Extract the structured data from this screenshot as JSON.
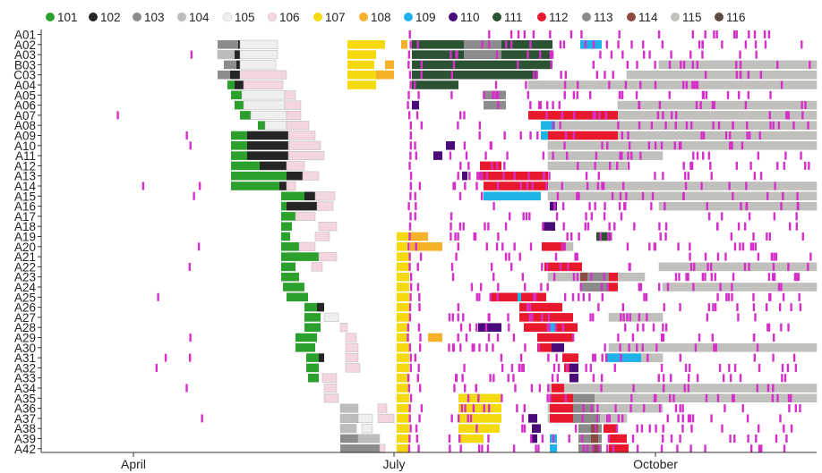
{
  "chart_data": {
    "type": "gantt",
    "legend": {
      "position": "top",
      "items": [
        {
          "label": "101",
          "color": "#2ca02c"
        },
        {
          "label": "102",
          "color": "#252525"
        },
        {
          "label": "103",
          "color": "#8c8c8c"
        },
        {
          "label": "104",
          "color": "#bdbdbd"
        },
        {
          "label": "105",
          "color": "#efefef"
        },
        {
          "label": "106",
          "color": "#f4d6df"
        },
        {
          "label": "107",
          "color": "#f5d90f"
        },
        {
          "label": "108",
          "color": "#f5b228"
        },
        {
          "label": "109",
          "color": "#1fb2e8"
        },
        {
          "label": "110",
          "color": "#4b0a7a"
        },
        {
          "label": "111",
          "color": "#2b5232"
        },
        {
          "label": "112",
          "color": "#e8192c"
        },
        {
          "label": "113",
          "color": "#8a8a8a"
        },
        {
          "label": "114",
          "color": "#8c4a42"
        },
        {
          "label": "115",
          "color": "#c2c0bd"
        },
        {
          "label": "116",
          "color": "#5a4a42"
        }
      ]
    },
    "xaxis": {
      "ticks": [
        "April",
        "July",
        "October"
      ]
    },
    "rows": [
      "A01",
      "A02",
      "A03",
      "B03",
      "C03",
      "A04",
      "A05",
      "A06",
      "A07",
      "A08",
      "A09",
      "A10",
      "A11",
      "A12",
      "A13",
      "A14",
      "A15",
      "A16",
      "A17",
      "A18",
      "A19",
      "A20",
      "A21",
      "A22",
      "A23",
      "A24",
      "A25",
      "A26",
      "A27",
      "A28",
      "A29",
      "A30",
      "A31",
      "A32",
      "A33",
      "A34",
      "A35",
      "A36",
      "A37",
      "A38",
      "A39",
      "A42"
    ]
  }
}
